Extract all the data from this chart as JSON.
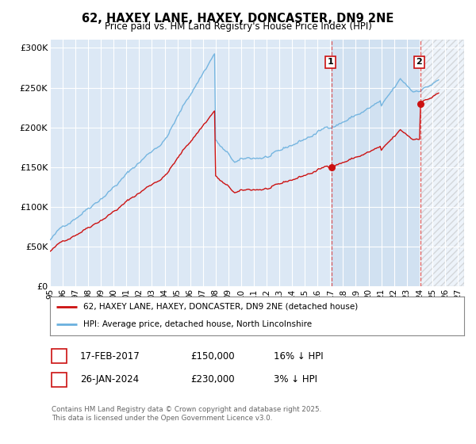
{
  "title": "62, HAXEY LANE, HAXEY, DONCASTER, DN9 2NE",
  "subtitle": "Price paid vs. HM Land Registry's House Price Index (HPI)",
  "ylim": [
    0,
    310000
  ],
  "xlim_start": 1995.0,
  "xlim_end": 2027.5,
  "yticks": [
    0,
    50000,
    100000,
    150000,
    200000,
    250000,
    300000
  ],
  "ytick_labels": [
    "£0",
    "£50K",
    "£100K",
    "£150K",
    "£200K",
    "£250K",
    "£300K"
  ],
  "plot_bg": "#dce8f5",
  "hpi_color": "#6ab0de",
  "price_color": "#cc1111",
  "vline_color": "#dd4444",
  "sale1_x": 2017.12,
  "sale1_y": 150000,
  "sale2_x": 2024.07,
  "sale2_y": 230000,
  "annotation1_label": "1",
  "annotation2_label": "2",
  "legend_label_red": "62, HAXEY LANE, HAXEY, DONCASTER, DN9 2NE (detached house)",
  "legend_label_blue": "HPI: Average price, detached house, North Lincolnshire",
  "table_row1": [
    "1",
    "17-FEB-2017",
    "£150,000",
    "16% ↓ HPI"
  ],
  "table_row2": [
    "2",
    "26-JAN-2024",
    "£230,000",
    "3% ↓ HPI"
  ],
  "footer": "Contains HM Land Registry data © Crown copyright and database right 2025.\nThis data is licensed under the Open Government Licence v3.0."
}
